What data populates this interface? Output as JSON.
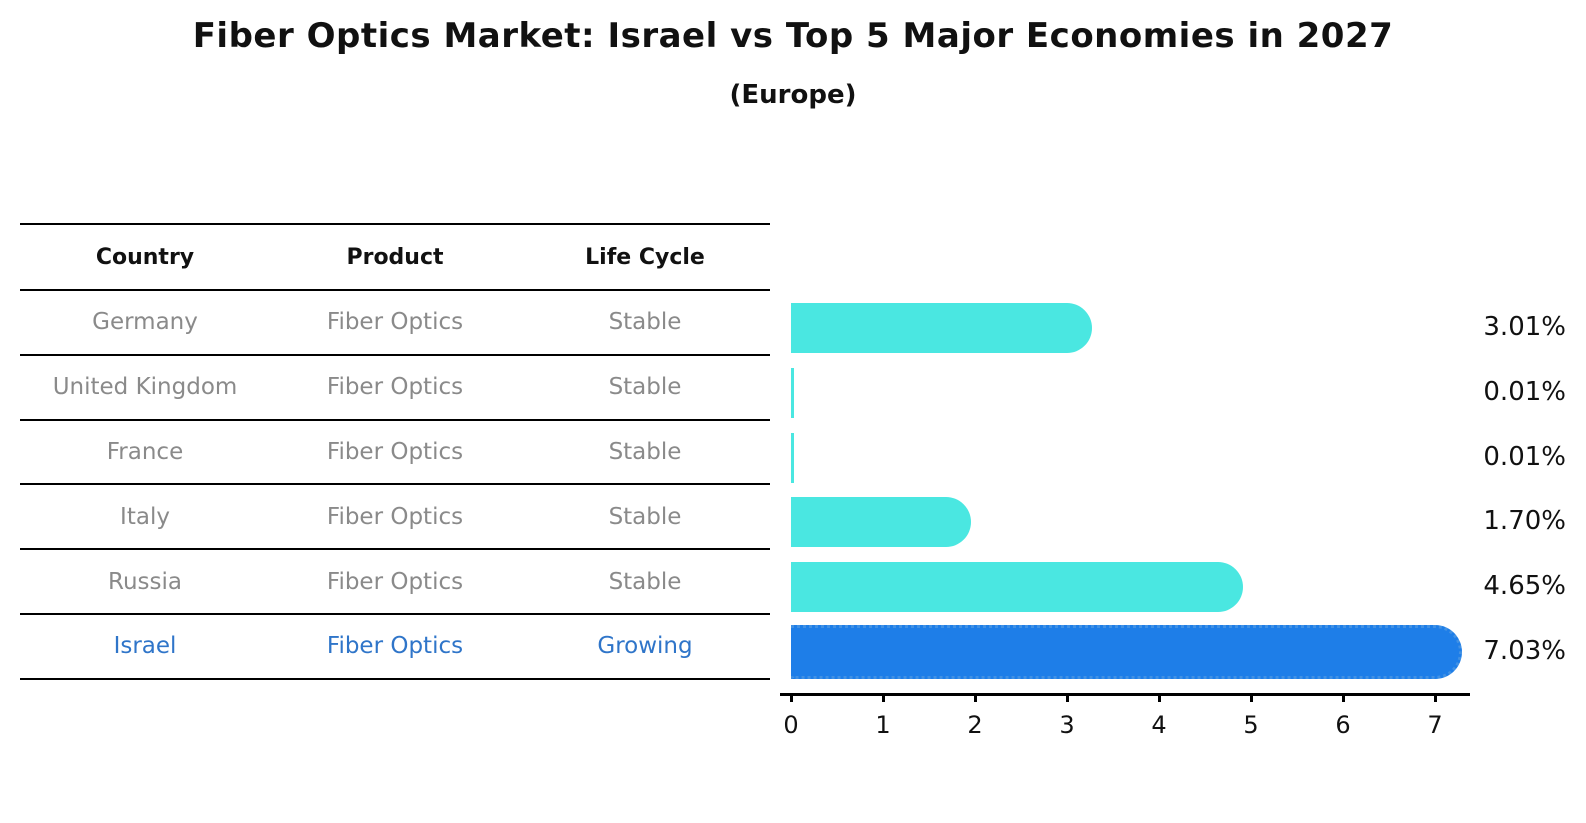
{
  "title": "Fiber Optics Market: Israel vs Top 5 Major Economies in 2027",
  "subtitle": "(Europe)",
  "table": {
    "columns": [
      "Country",
      "Product",
      "Life Cycle"
    ],
    "rows": [
      {
        "cells": [
          "Germany",
          "Fiber Optics",
          "Stable"
        ],
        "highlight": false
      },
      {
        "cells": [
          "United Kingdom",
          "Fiber Optics",
          "Stable"
        ],
        "highlight": false
      },
      {
        "cells": [
          "France",
          "Fiber Optics",
          "Stable"
        ],
        "highlight": false
      },
      {
        "cells": [
          "Italy",
          "Fiber Optics",
          "Stable"
        ],
        "highlight": false
      },
      {
        "cells": [
          "Russia",
          "Fiber Optics",
          "Stable"
        ],
        "highlight": false
      },
      {
        "cells": [
          "Israel",
          "Fiber Optics",
          "Growing"
        ],
        "highlight": true
      }
    ]
  },
  "chart_data": {
    "type": "bar",
    "orientation": "horizontal",
    "title": "Fiber Optics Market: Israel vs Top 5 Major Economies in 2027",
    "subtitle": "(Europe)",
    "categories": [
      "Germany",
      "United Kingdom",
      "France",
      "Italy",
      "Russia",
      "Israel"
    ],
    "values": [
      3.01,
      0.01,
      0.01,
      1.7,
      4.65,
      7.03
    ],
    "value_labels": [
      "3.01%",
      "0.01%",
      "0.01%",
      "1.70%",
      "4.65%",
      "7.03%"
    ],
    "xlabel": "",
    "ylabel": "",
    "xlim": [
      0,
      7.4
    ],
    "xticks": [
      0,
      1,
      2,
      3,
      4,
      5,
      6,
      7
    ],
    "grid": false,
    "legend": null,
    "highlight_index": 5
  },
  "colors": {
    "bar": "#4AE7E1",
    "highlight_bar": "#1E7EE8",
    "highlight_border": "#4191E4",
    "highlight_text": "#2F75C9",
    "table_text": "#8a8a8a",
    "header_text": "#111111",
    "axis": "#000000",
    "background": "#ffffff"
  }
}
